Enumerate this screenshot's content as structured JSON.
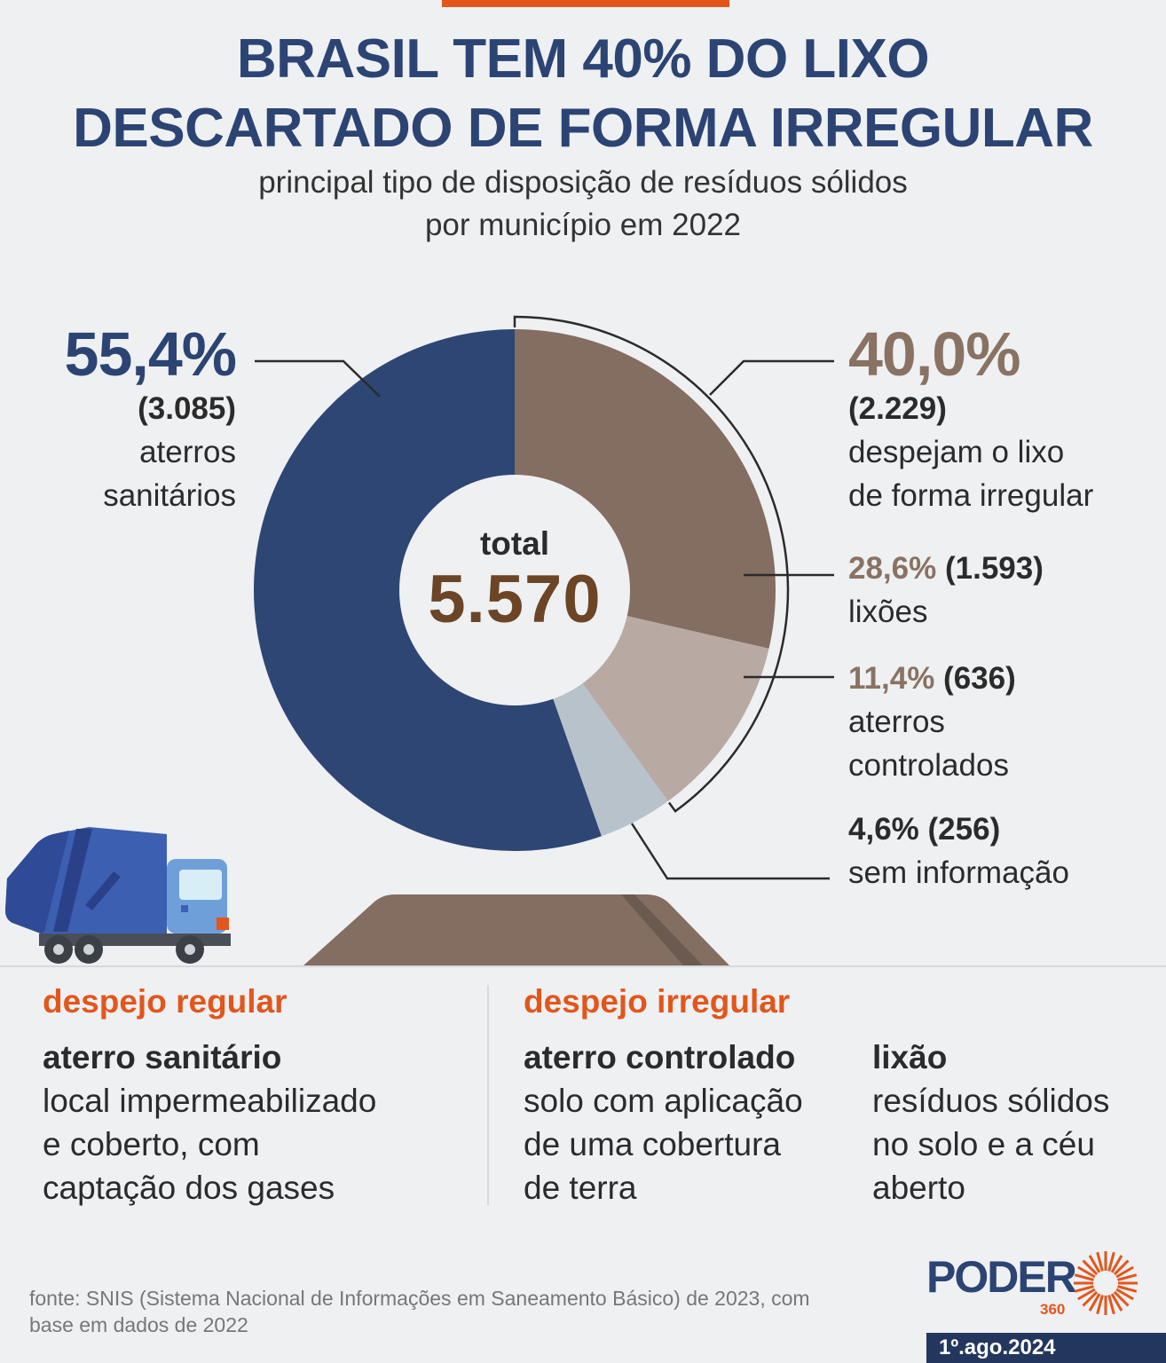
{
  "header": {
    "title_line1": "BRASIL TEM 40% DO LIXO",
    "title_line2": "DESCARTADO DE FORMA IRREGULAR",
    "subtitle_line1": "principal tipo de disposição de resíduos sólidos",
    "subtitle_line2": "por município em 2022"
  },
  "center": {
    "label": "total",
    "value": "5.570"
  },
  "labels": {
    "sanitario": {
      "pct": "55,4%",
      "count": "(3.085)",
      "line1": "aterros",
      "line2": "sanitários"
    },
    "irregular": {
      "pct": "40,0%",
      "count": "(2.229)",
      "line1": "despejam o lixo",
      "line2": "de forma irregular"
    },
    "lixoes": {
      "pct": "28,6%",
      "count": "(1.593)",
      "line1": "lixões"
    },
    "controlados": {
      "pct": "11,4%",
      "count": "(636)",
      "line1": "aterros",
      "line2": "controlados"
    },
    "sem_info": {
      "pct": "4,6%",
      "count": "(256)",
      "line1": "sem informação"
    }
  },
  "chart_data": {
    "type": "pie",
    "title": "BRASIL TEM 40% DO LIXO DESCARTADO DE FORMA IRREGULAR",
    "subtitle": "principal tipo de disposição de resíduos sólidos por município em 2022",
    "total": 5570,
    "categories": [
      "lixões",
      "aterros controlados",
      "sem informação",
      "aterros sanitários"
    ],
    "values": [
      28.6,
      11.4,
      4.6,
      55.4
    ],
    "counts": [
      1593,
      636,
      256,
      3085
    ],
    "colors": [
      "#846d61",
      "#b8aaa3",
      "#b7c2cb",
      "#2e4674"
    ],
    "group": {
      "label": "despejam o lixo de forma irregular",
      "pct": 40.0,
      "count": 2229
    }
  },
  "definitions": {
    "regular_heading": "despejo regular",
    "irregular_heading": "despejo irregular",
    "sanitario_title": "aterro sanitário",
    "sanitario_lines": [
      "local impermeabilizado",
      "e coberto, com",
      "captação dos gases"
    ],
    "controlado_title": "aterro controlado",
    "controlado_lines": [
      "solo com aplicação",
      "de uma cobertura",
      "de terra"
    ],
    "lixao_title": "lixão",
    "lixao_lines": [
      "resíduos sólidos",
      "no solo e a céu",
      "aberto"
    ]
  },
  "footer": {
    "source_line1": "fonte: SNIS (Sistema Nacional de Informações em Saneamento Básico) de 2023, com",
    "source_line2": "base em dados de 2022",
    "logo_text": "PODER",
    "logo_sub": "360",
    "date": "1º.ago.2024"
  }
}
